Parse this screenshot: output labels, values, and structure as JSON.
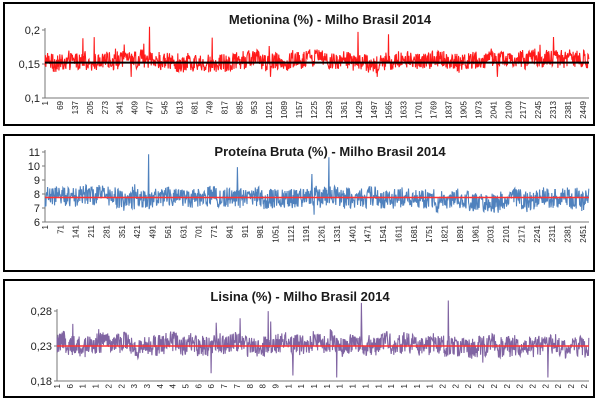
{
  "chart_data": [
    {
      "type": "line",
      "title": "Metionina (%) - Milho Brasil 2014",
      "n": 2500,
      "ylim": [
        0.1,
        0.2
      ],
      "yticks": [
        "0,1",
        "0,15",
        "0,2"
      ],
      "ytick_values": [
        0.1,
        0.15,
        0.2
      ],
      "xticks": [
        "1",
        "69",
        "137",
        "205",
        "273",
        "341",
        "409",
        "477",
        "545",
        "613",
        "681",
        "749",
        "817",
        "885",
        "953",
        "1021",
        "1089",
        "1157",
        "1225",
        "1293",
        "1361",
        "1429",
        "1497",
        "1565",
        "1633",
        "1701",
        "1769",
        "1837",
        "1905",
        "1973",
        "2041",
        "2109",
        "2177",
        "2245",
        "2313",
        "2381",
        "2449"
      ],
      "reference_line": 0.152,
      "series": [
        {
          "color": "#ff1a1a",
          "baseline": 0.155,
          "noise_low": 0.141,
          "noise_high": 0.172,
          "max": 0.205,
          "min": 0.131
        }
      ],
      "reference_color": "#000000",
      "grid": false
    },
    {
      "type": "line",
      "title": "Proteína Bruta (%) - Milho Brasil 2014",
      "n": 2500,
      "ylim": [
        6,
        11
      ],
      "yticks": [
        "6",
        "7",
        "8",
        "9",
        "10",
        "11"
      ],
      "ytick_values": [
        6,
        7,
        8,
        9,
        10,
        11
      ],
      "xticks": [
        "1",
        "71",
        "141",
        "211",
        "281",
        "351",
        "421",
        "491",
        "561",
        "631",
        "701",
        "771",
        "841",
        "911",
        "981",
        "1051",
        "1121",
        "1191",
        "1261",
        "1331",
        "1401",
        "1471",
        "1541",
        "1611",
        "1681",
        "1751",
        "1821",
        "1891",
        "1961",
        "2031",
        "2101",
        "2171",
        "2241",
        "2311",
        "2381",
        "2451"
      ],
      "reference_line": 7.75,
      "series": [
        {
          "color": "#4f81bd",
          "baseline": 7.75,
          "noise_low": 6.9,
          "noise_high": 8.6,
          "max": 10.9,
          "min": 6.2
        }
      ],
      "reference_color": "#ff3333",
      "grid": false
    },
    {
      "type": "line",
      "title": "Lisina (%) - Milho Brasil 2014",
      "n": 2500,
      "ylim": [
        0.18,
        0.28
      ],
      "yticks": [
        "0,18",
        "0,23",
        "0,28"
      ],
      "ytick_values": [
        0.18,
        0.23,
        0.28
      ],
      "xticks": [
        "1",
        "6",
        "1",
        "1",
        "2",
        "2",
        "3",
        "3",
        "4",
        "4",
        "5",
        "6",
        "6",
        "7",
        "7",
        "8",
        "8",
        "9",
        "1",
        "1",
        "1",
        "1",
        "1",
        "1",
        "1",
        "1",
        "1",
        "1",
        "1",
        "1",
        "2",
        "2",
        "2",
        "2",
        "2",
        "2",
        "2",
        "2",
        "2",
        "2",
        "2",
        "2"
      ],
      "reference_line": 0.23,
      "series": [
        {
          "color": "#8064a2",
          "baseline": 0.232,
          "noise_low": 0.215,
          "noise_high": 0.25,
          "max": 0.295,
          "min": 0.185
        }
      ],
      "reference_color": "#ff3333",
      "grid": false
    }
  ]
}
